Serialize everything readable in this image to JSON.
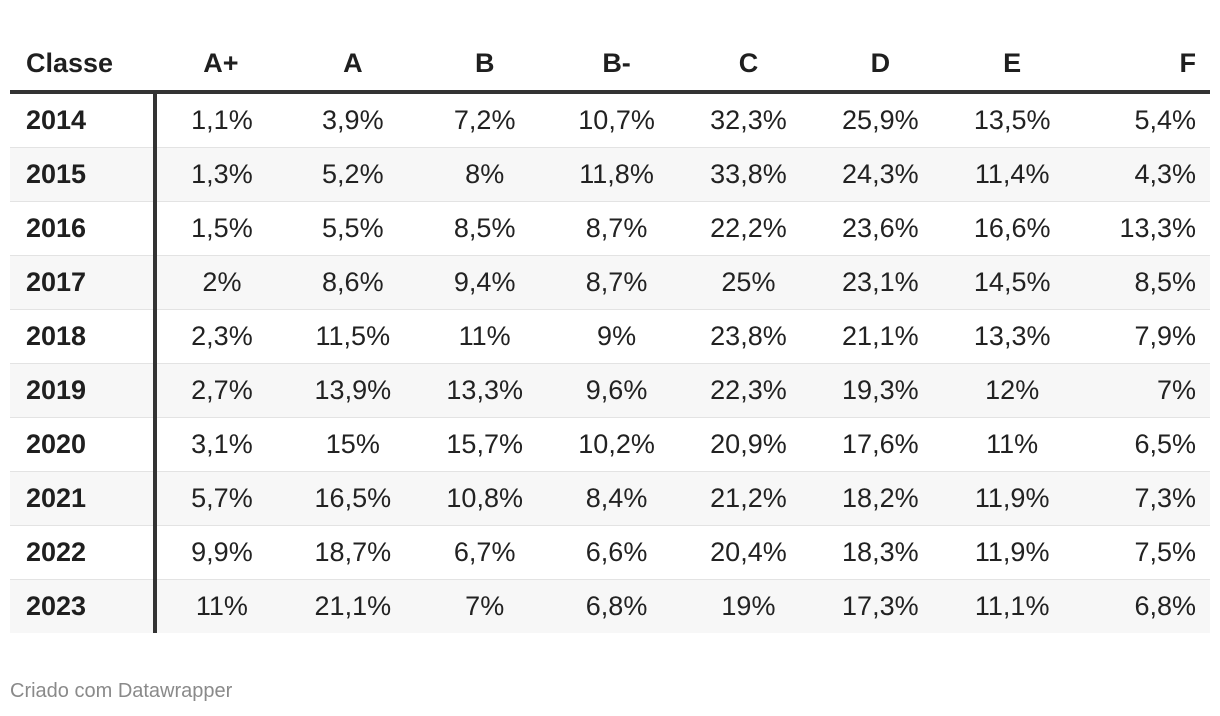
{
  "chart_data": {
    "type": "table",
    "columns": [
      "Classe",
      "A+",
      "A",
      "B",
      "B-",
      "C",
      "D",
      "E",
      "F"
    ],
    "rows": [
      {
        "label": "2014",
        "values": [
          "1,1%",
          "3,9%",
          "7,2%",
          "10,7%",
          "32,3%",
          "25,9%",
          "13,5%",
          "5,4%"
        ]
      },
      {
        "label": "2015",
        "values": [
          "1,3%",
          "5,2%",
          "8%",
          "11,8%",
          "33,8%",
          "24,3%",
          "11,4%",
          "4,3%"
        ]
      },
      {
        "label": "2016",
        "values": [
          "1,5%",
          "5,5%",
          "8,5%",
          "8,7%",
          "22,2%",
          "23,6%",
          "16,6%",
          "13,3%"
        ]
      },
      {
        "label": "2017",
        "values": [
          "2%",
          "8,6%",
          "9,4%",
          "8,7%",
          "25%",
          "23,1%",
          "14,5%",
          "8,5%"
        ]
      },
      {
        "label": "2018",
        "values": [
          "2,3%",
          "11,5%",
          "11%",
          "9%",
          "23,8%",
          "21,1%",
          "13,3%",
          "7,9%"
        ]
      },
      {
        "label": "2019",
        "values": [
          "2,7%",
          "13,9%",
          "13,3%",
          "9,6%",
          "22,3%",
          "19,3%",
          "12%",
          "7%"
        ]
      },
      {
        "label": "2020",
        "values": [
          "3,1%",
          "15%",
          "15,7%",
          "10,2%",
          "20,9%",
          "17,6%",
          "11%",
          "6,5%"
        ]
      },
      {
        "label": "2021",
        "values": [
          "5,7%",
          "16,5%",
          "10,8%",
          "8,4%",
          "21,2%",
          "18,2%",
          "11,9%",
          "7,3%"
        ]
      },
      {
        "label": "2022",
        "values": [
          "9,9%",
          "18,7%",
          "6,7%",
          "6,6%",
          "20,4%",
          "18,3%",
          "11,9%",
          "7,5%"
        ]
      },
      {
        "label": "2023",
        "values": [
          "11%",
          "21,1%",
          "7%",
          "6,8%",
          "19%",
          "17,3%",
          "11,1%",
          "6,8%"
        ]
      }
    ],
    "grid": true,
    "colors": {
      "text": "#1f1f1f",
      "rule": "#333333",
      "stripe": "#f7f7f7",
      "separator": "#e3e3e3",
      "footer": "#8a8a8a"
    }
  },
  "footer": {
    "credit": "Criado com Datawrapper"
  }
}
